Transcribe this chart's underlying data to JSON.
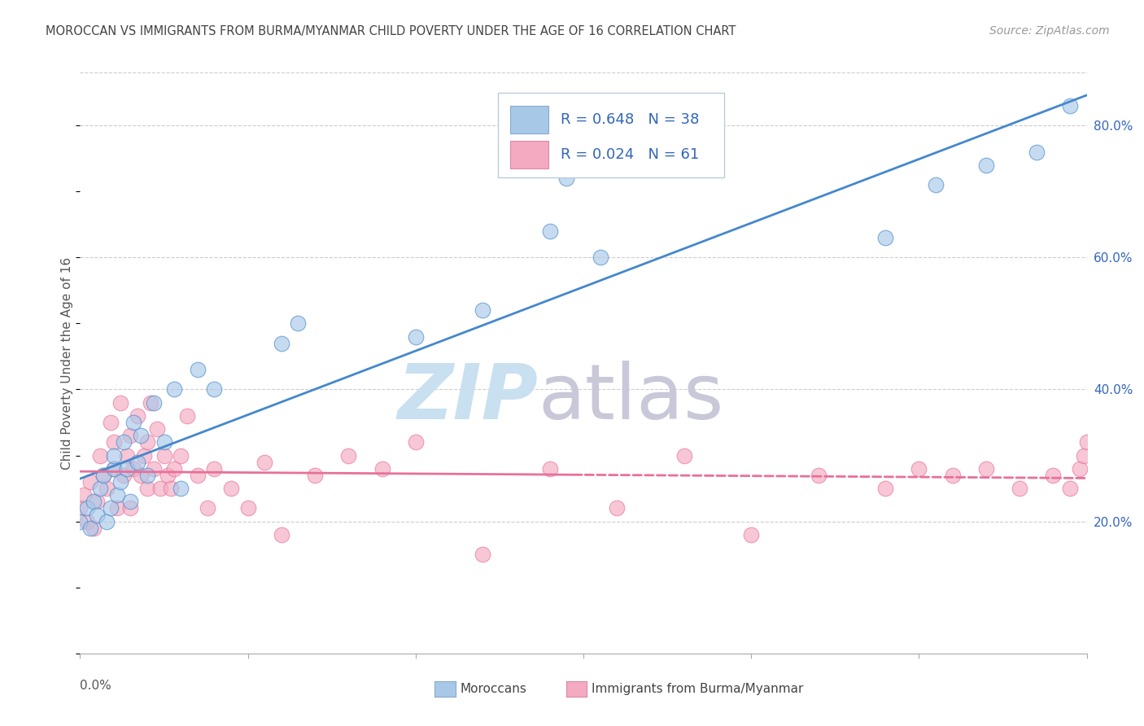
{
  "title": "MOROCCAN VS IMMIGRANTS FROM BURMA/MYANMAR CHILD POVERTY UNDER THE AGE OF 16 CORRELATION CHART",
  "source": "Source: ZipAtlas.com",
  "ylabel": "Child Poverty Under the Age of 16",
  "xmin": 0.0,
  "xmax": 0.3,
  "ymin": 0.0,
  "ymax": 0.88,
  "yticks": [
    0.2,
    0.4,
    0.6,
    0.8
  ],
  "ytick_labels": [
    "20.0%",
    "40.0%",
    "60.0%",
    "80.0%"
  ],
  "xticks": [
    0.0,
    0.05,
    0.1,
    0.15,
    0.2,
    0.25,
    0.3
  ],
  "color_blue": "#a8c8e8",
  "color_pink": "#f4aac0",
  "line_blue": "#4488cc",
  "line_pink": "#e87099",
  "text_blue": "#3366bb",
  "watermark_zip_color": "#c8e0f0",
  "watermark_atlas_color": "#c8c8d8",
  "background_color": "#ffffff",
  "grid_color": "#cccccc",
  "moroccan_x": [
    0.0,
    0.002,
    0.003,
    0.004,
    0.005,
    0.006,
    0.007,
    0.008,
    0.009,
    0.01,
    0.01,
    0.011,
    0.012,
    0.013,
    0.014,
    0.015,
    0.016,
    0.017,
    0.018,
    0.02,
    0.022,
    0.025,
    0.028,
    0.03,
    0.035,
    0.04,
    0.06,
    0.065,
    0.1,
    0.12,
    0.14,
    0.145,
    0.155,
    0.24,
    0.255,
    0.27,
    0.285,
    0.295
  ],
  "moroccan_y": [
    0.2,
    0.22,
    0.19,
    0.23,
    0.21,
    0.25,
    0.27,
    0.2,
    0.22,
    0.28,
    0.3,
    0.24,
    0.26,
    0.32,
    0.28,
    0.23,
    0.35,
    0.29,
    0.33,
    0.27,
    0.38,
    0.32,
    0.4,
    0.25,
    0.43,
    0.4,
    0.47,
    0.5,
    0.48,
    0.52,
    0.64,
    0.72,
    0.6,
    0.63,
    0.71,
    0.74,
    0.76,
    0.83
  ],
  "burma_x": [
    0.0,
    0.001,
    0.002,
    0.003,
    0.004,
    0.005,
    0.006,
    0.007,
    0.008,
    0.009,
    0.01,
    0.01,
    0.011,
    0.012,
    0.013,
    0.014,
    0.015,
    0.015,
    0.016,
    0.017,
    0.018,
    0.019,
    0.02,
    0.02,
    0.021,
    0.022,
    0.023,
    0.024,
    0.025,
    0.026,
    0.027,
    0.028,
    0.03,
    0.032,
    0.035,
    0.038,
    0.04,
    0.045,
    0.05,
    0.055,
    0.06,
    0.07,
    0.08,
    0.09,
    0.1,
    0.12,
    0.14,
    0.16,
    0.18,
    0.2,
    0.22,
    0.24,
    0.25,
    0.26,
    0.27,
    0.28,
    0.29,
    0.295,
    0.298,
    0.299,
    0.3
  ],
  "burma_y": [
    0.22,
    0.24,
    0.2,
    0.26,
    0.19,
    0.23,
    0.3,
    0.27,
    0.25,
    0.35,
    0.28,
    0.32,
    0.22,
    0.38,
    0.27,
    0.3,
    0.33,
    0.22,
    0.28,
    0.36,
    0.27,
    0.3,
    0.25,
    0.32,
    0.38,
    0.28,
    0.34,
    0.25,
    0.3,
    0.27,
    0.25,
    0.28,
    0.3,
    0.36,
    0.27,
    0.22,
    0.28,
    0.25,
    0.22,
    0.29,
    0.18,
    0.27,
    0.3,
    0.28,
    0.32,
    0.15,
    0.28,
    0.22,
    0.3,
    0.18,
    0.27,
    0.25,
    0.28,
    0.27,
    0.28,
    0.25,
    0.27,
    0.25,
    0.28,
    0.3,
    0.32
  ]
}
